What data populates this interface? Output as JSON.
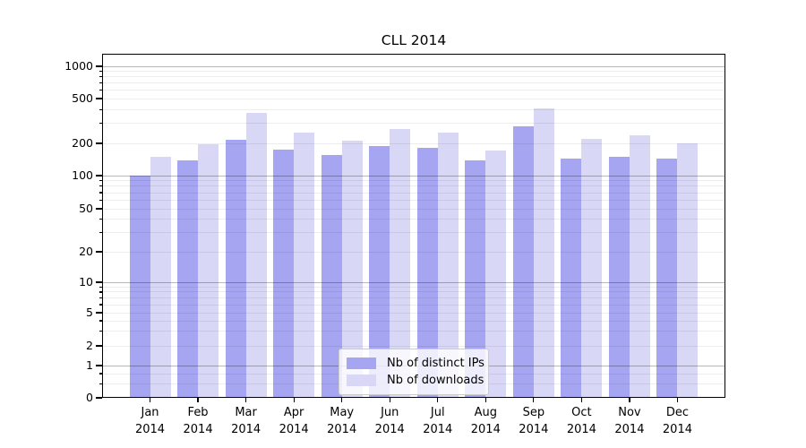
{
  "chart_data": {
    "type": "bar",
    "title": "CLL 2014",
    "categories": [
      "Jan",
      "Feb",
      "Mar",
      "Apr",
      "May",
      "Jun",
      "Jul",
      "Aug",
      "Sep",
      "Oct",
      "Nov",
      "Dec"
    ],
    "x_year_label": "2014",
    "series": [
      {
        "name": "Nb of distinct IPs",
        "color": "#a5a5f1",
        "values": [
          100,
          140,
          215,
          175,
          155,
          190,
          180,
          140,
          285,
          145,
          150,
          145
        ]
      },
      {
        "name": "Nb of downloads",
        "color": "#d8d8f6",
        "values": [
          150,
          195,
          370,
          250,
          210,
          270,
          250,
          170,
          405,
          220,
          235,
          200
        ]
      }
    ],
    "y_scale": "symlog",
    "y_ticks": [
      "0",
      "1",
      "2",
      "5",
      "10",
      "20",
      "50",
      "100",
      "200",
      "500",
      "1000"
    ],
    "ylim": [
      0,
      1300
    ],
    "grid": true,
    "legend_position": "bottom-center"
  },
  "colors": {
    "bar_distinct_ips": "#a5a5f1",
    "bar_downloads": "#d8d8f6",
    "grid_minor": "#ececec",
    "grid_major": "#b8b8b8",
    "frame": "#000000"
  }
}
